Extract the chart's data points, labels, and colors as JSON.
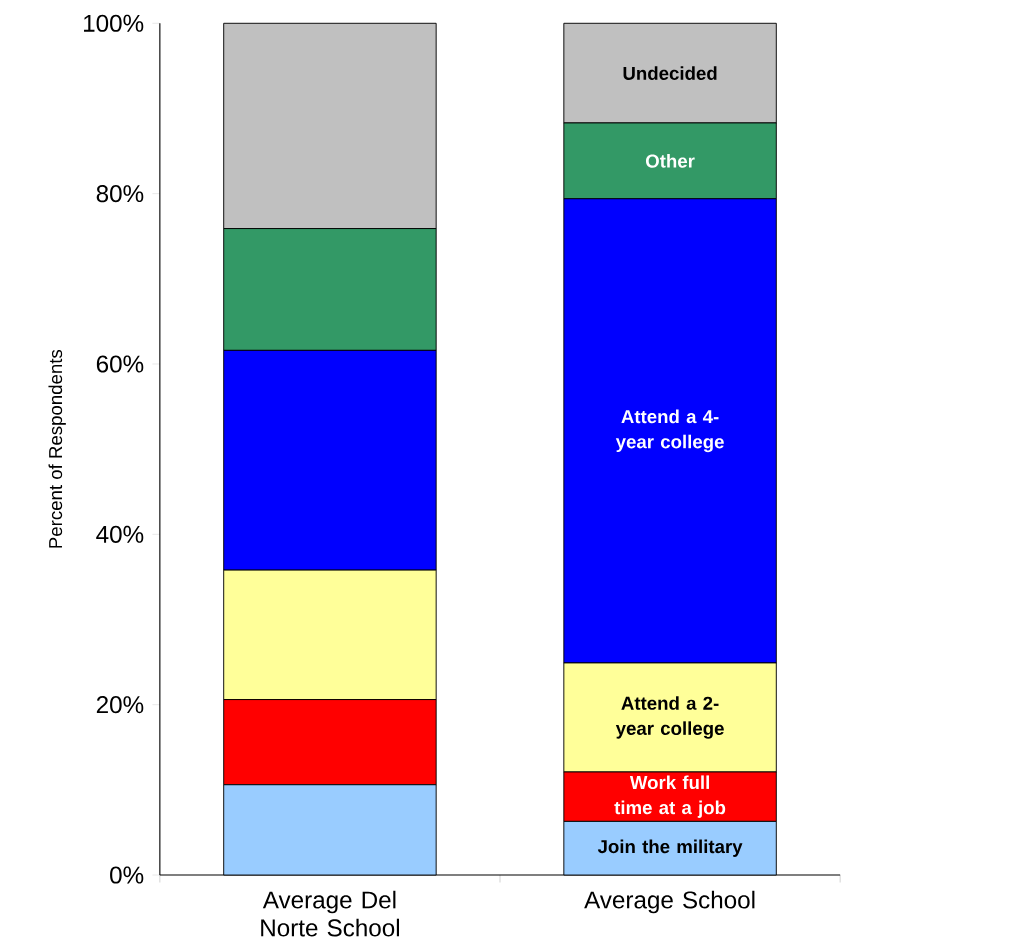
{
  "chart_data": {
    "type": "bar",
    "stacked": true,
    "ylabel": "Percent of Respondents",
    "categories": [
      "Average Del Norte School",
      "Average School"
    ],
    "ylim": [
      0,
      100
    ],
    "yticks": [
      {
        "value": 0,
        "label": "0%"
      },
      {
        "value": 20,
        "label": "20%"
      },
      {
        "value": 40,
        "label": "40%"
      },
      {
        "value": 60,
        "label": "60%"
      },
      {
        "value": 80,
        "label": "80%"
      },
      {
        "value": 100,
        "label": "100%"
      }
    ],
    "series": [
      {
        "name": "Join the military",
        "color": "#99ccff",
        "values": [
          10.6,
          6.3
        ]
      },
      {
        "name": "Work full time at a job",
        "color": "#ff0000",
        "values": [
          10.0,
          5.8
        ]
      },
      {
        "name": "Attend a 2-year college",
        "color": "#ffff99",
        "values": [
          15.2,
          12.8
        ]
      },
      {
        "name": "Attend a 4-year college",
        "color": "#0000ff",
        "values": [
          25.8,
          54.5
        ]
      },
      {
        "name": "Other",
        "color": "#339966",
        "values": [
          14.3,
          8.9
        ]
      },
      {
        "name": "Undecided",
        "color": "#c0c0c0",
        "values": [
          24.1,
          11.7
        ]
      }
    ]
  }
}
